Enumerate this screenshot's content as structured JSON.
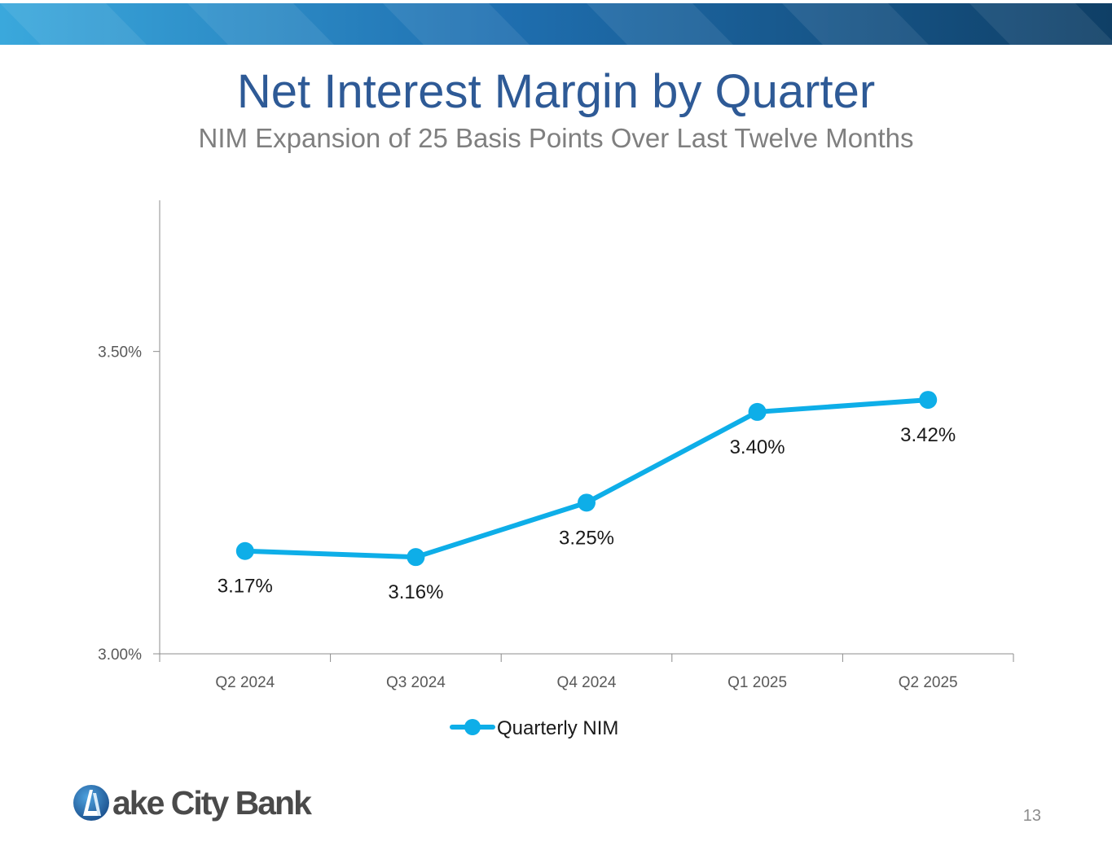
{
  "slide": {
    "title": "Net Interest Margin by Quarter",
    "subtitle": "NIM Expansion of 25 Basis Points Over Last Twelve Months",
    "page_number": "13",
    "logo_text": "ake City Bank",
    "logo_letter": "L"
  },
  "colors": {
    "title": "#2e5a96",
    "subtitle": "#7f7f7f",
    "series": "#0eaee8",
    "band_light": "#3aa8dc",
    "band_dark": "#0f3f66",
    "axis": "#8c8c8c"
  },
  "chart_data": {
    "type": "line",
    "title": "",
    "xlabel": "",
    "ylabel": "",
    "categories": [
      "Q2 2024",
      "Q3 2024",
      "Q4 2024",
      "Q1 2025",
      "Q2 2025"
    ],
    "series": [
      {
        "name": "Quarterly NIM",
        "values": [
          3.17,
          3.16,
          3.25,
          3.4,
          3.42
        ],
        "labels": [
          "3.17%",
          "3.16%",
          "3.25%",
          "3.40%",
          "3.42%"
        ]
      }
    ],
    "ylim": [
      3.0,
      3.75
    ],
    "yticks": [
      3.0,
      3.5
    ],
    "ytick_labels": [
      "3.00%",
      "3.50%"
    ],
    "grid": false,
    "legend": "bottom"
  }
}
